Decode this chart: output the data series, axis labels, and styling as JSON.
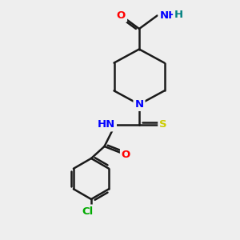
{
  "bg_color": "#eeeeee",
  "bond_color": "#1a1a1a",
  "bond_width": 1.8,
  "atom_colors": {
    "O": "#ff0000",
    "N": "#0000ff",
    "S": "#cccc00",
    "Cl": "#00aa00",
    "H": "#008080",
    "C": "#1a1a1a"
  },
  "font_size": 9.5,
  "xlim": [
    0,
    10
  ],
  "ylim": [
    0,
    10
  ]
}
